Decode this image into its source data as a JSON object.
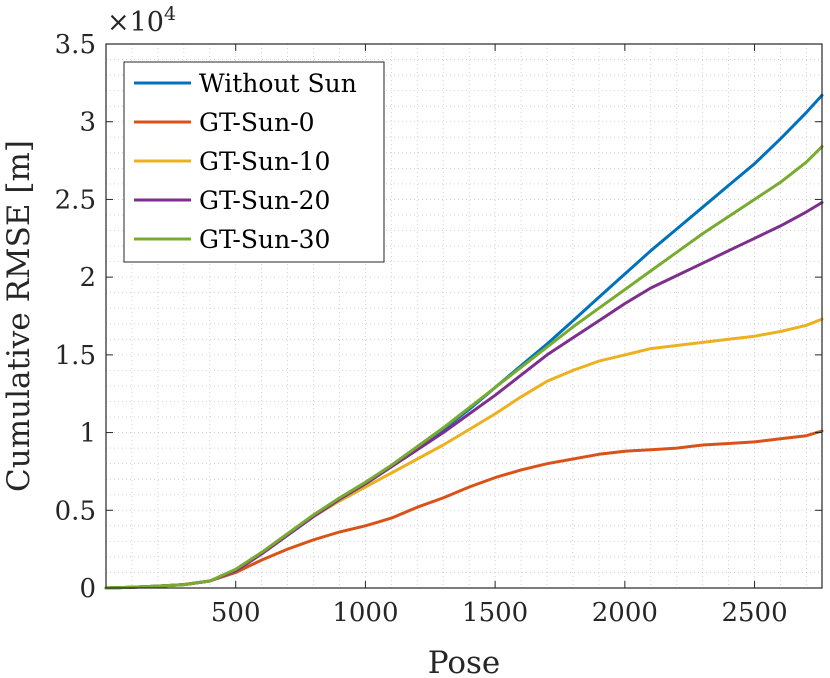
{
  "chart_data": {
    "type": "line",
    "xlabel": "Pose",
    "ylabel": "Cumulative RMSE [m]",
    "multiplier": {
      "base": "×10",
      "exponent": "4"
    },
    "xlim": [
      0,
      2760
    ],
    "ylim": [
      0,
      3.5
    ],
    "xticks": [
      500,
      1000,
      1500,
      2000,
      2500
    ],
    "xtick_labels": [
      "500",
      "1000",
      "1500",
      "2000",
      "2500"
    ],
    "yticks": [
      0,
      0.5,
      1,
      1.5,
      2,
      2.5,
      3,
      3.5
    ],
    "ytick_labels": [
      "0",
      "0.5",
      "1",
      "1.5",
      "2",
      "2.5",
      "3",
      "3.5"
    ],
    "grid": "minor dotted",
    "legend_position": "top-left",
    "series": [
      {
        "name": "Without Sun",
        "color": "#0072BD",
        "x": [
          0,
          100,
          200,
          300,
          400,
          500,
          600,
          700,
          800,
          900,
          1000,
          1100,
          1200,
          1300,
          1400,
          1500,
          1600,
          1700,
          1800,
          1900,
          2000,
          2100,
          2200,
          2300,
          2400,
          2500,
          2600,
          2700,
          2760
        ],
        "y": [
          0,
          0.005,
          0.012,
          0.022,
          0.045,
          0.11,
          0.22,
          0.34,
          0.46,
          0.57,
          0.67,
          0.78,
          0.9,
          1.02,
          1.15,
          1.29,
          1.43,
          1.57,
          1.72,
          1.87,
          2.02,
          2.17,
          2.31,
          2.45,
          2.59,
          2.73,
          2.89,
          3.06,
          3.17
        ]
      },
      {
        "name": "GT-Sun-0",
        "color": "#D95319",
        "x": [
          0,
          100,
          200,
          300,
          400,
          500,
          600,
          700,
          800,
          900,
          1000,
          1100,
          1200,
          1300,
          1400,
          1500,
          1600,
          1700,
          1800,
          1900,
          2000,
          2100,
          2200,
          2300,
          2400,
          2500,
          2600,
          2700,
          2760
        ],
        "y": [
          0,
          0.005,
          0.012,
          0.022,
          0.045,
          0.1,
          0.18,
          0.25,
          0.31,
          0.36,
          0.4,
          0.45,
          0.52,
          0.58,
          0.65,
          0.71,
          0.76,
          0.8,
          0.83,
          0.86,
          0.88,
          0.89,
          0.9,
          0.92,
          0.93,
          0.94,
          0.96,
          0.98,
          1.01
        ]
      },
      {
        "name": "GT-Sun-10",
        "color": "#EDB120",
        "x": [
          0,
          100,
          200,
          300,
          400,
          500,
          600,
          700,
          800,
          900,
          1000,
          1100,
          1200,
          1300,
          1400,
          1500,
          1600,
          1700,
          1800,
          1900,
          2000,
          2100,
          2200,
          2300,
          2400,
          2500,
          2600,
          2700,
          2760
        ],
        "y": [
          0,
          0.005,
          0.012,
          0.022,
          0.045,
          0.11,
          0.22,
          0.34,
          0.46,
          0.56,
          0.65,
          0.74,
          0.83,
          0.92,
          1.02,
          1.12,
          1.23,
          1.33,
          1.4,
          1.46,
          1.5,
          1.54,
          1.56,
          1.58,
          1.6,
          1.62,
          1.65,
          1.69,
          1.73
        ]
      },
      {
        "name": "GT-Sun-20",
        "color": "#7E2F8E",
        "x": [
          0,
          100,
          200,
          300,
          400,
          500,
          600,
          700,
          800,
          900,
          1000,
          1100,
          1200,
          1300,
          1400,
          1500,
          1600,
          1700,
          1800,
          1900,
          2000,
          2100,
          2200,
          2300,
          2400,
          2500,
          2600,
          2700,
          2760
        ],
        "y": [
          0,
          0.005,
          0.012,
          0.022,
          0.045,
          0.11,
          0.22,
          0.34,
          0.46,
          0.57,
          0.67,
          0.78,
          0.89,
          1.0,
          1.12,
          1.24,
          1.37,
          1.5,
          1.61,
          1.72,
          1.83,
          1.93,
          2.01,
          2.09,
          2.17,
          2.25,
          2.33,
          2.42,
          2.48
        ]
      },
      {
        "name": "GT-Sun-30",
        "color": "#77AC30",
        "x": [
          0,
          100,
          200,
          300,
          400,
          500,
          600,
          700,
          800,
          900,
          1000,
          1100,
          1200,
          1300,
          1400,
          1500,
          1600,
          1700,
          1800,
          1900,
          2000,
          2100,
          2200,
          2300,
          2400,
          2500,
          2600,
          2700,
          2760
        ],
        "y": [
          0,
          0.005,
          0.012,
          0.022,
          0.045,
          0.12,
          0.23,
          0.35,
          0.47,
          0.58,
          0.68,
          0.79,
          0.91,
          1.03,
          1.16,
          1.29,
          1.42,
          1.55,
          1.68,
          1.8,
          1.92,
          2.04,
          2.16,
          2.28,
          2.39,
          2.5,
          2.61,
          2.74,
          2.84
        ]
      }
    ]
  }
}
